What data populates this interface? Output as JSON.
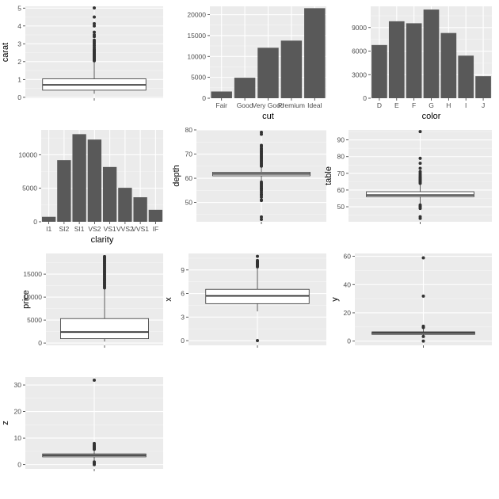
{
  "colors": {
    "panel_bg": "#ebebeb",
    "grid_major": "#ffffff",
    "grid_minor": "#f5f5f5",
    "bar_fill": "#595959",
    "box_fill": "#ffffff",
    "box_line": "#333333",
    "outlier": "#333333",
    "tick_text": "#4d4d4d",
    "axis_title": "#000000"
  },
  "chart_data": [
    {
      "id": "carat",
      "type": "box",
      "ylabel": "carat",
      "xlabel": "",
      "ylim": [
        -0.05,
        5.1
      ],
      "yticks": [
        0,
        1,
        2,
        3,
        4,
        5
      ],
      "ytick_labels": [
        "0",
        "1",
        "2",
        "3",
        "4",
        "5"
      ],
      "box": {
        "lower_whisker": 0.2,
        "q1": 0.4,
        "median": 0.7,
        "q3": 1.04,
        "upper_whisker": 2.0
      },
      "outliers": [
        2.05,
        2.1,
        2.15,
        2.2,
        2.25,
        2.3,
        2.35,
        2.4,
        2.45,
        2.5,
        2.55,
        2.6,
        2.65,
        2.7,
        2.8,
        2.9,
        3.0,
        3.1,
        3.2,
        3.4,
        3.5,
        3.65,
        4.0,
        4.13,
        4.5,
        5.01
      ]
    },
    {
      "id": "cut",
      "type": "bar",
      "xlabel": "cut",
      "ylabel": "",
      "categories": [
        "Fair",
        "Good",
        "Very Good",
        "Premium",
        "Ideal"
      ],
      "values": [
        1610,
        4906,
        12082,
        13791,
        21551
      ],
      "ylim": [
        0,
        22000
      ],
      "yticks": [
        0,
        5000,
        10000,
        15000,
        20000
      ],
      "ytick_labels": [
        "0",
        "5000",
        "10000",
        "15000",
        "20000"
      ]
    },
    {
      "id": "color",
      "type": "bar",
      "xlabel": "color",
      "ylabel": "",
      "categories": [
        "D",
        "E",
        "F",
        "G",
        "H",
        "I",
        "J"
      ],
      "values": [
        6775,
        9797,
        9542,
        11292,
        8304,
        5422,
        2808
      ],
      "ylim": [
        0,
        11700
      ],
      "yticks": [
        0,
        3000,
        6000,
        9000
      ],
      "ytick_labels": [
        "0",
        "3000",
        "6000",
        "9000"
      ]
    },
    {
      "id": "clarity",
      "type": "bar",
      "xlabel": "clarity",
      "ylabel": "",
      "categories": [
        "I1",
        "SI2",
        "SI1",
        "VS2",
        "VS1",
        "VVS2",
        "VVS1",
        "IF"
      ],
      "values": [
        741,
        9194,
        13065,
        12258,
        8171,
        5066,
        3655,
        1790
      ],
      "ylim": [
        0,
        13700
      ],
      "yticks": [
        0,
        5000,
        10000
      ],
      "ytick_labels": [
        "0",
        "5000",
        "10000"
      ]
    },
    {
      "id": "depth",
      "type": "box",
      "ylabel": "depth",
      "xlabel": "",
      "ylim": [
        42,
        80
      ],
      "yticks": [
        50,
        60,
        70,
        80
      ],
      "ytick_labels": [
        "50",
        "60",
        "70",
        "80"
      ],
      "box": {
        "lower_whisker": 58.8,
        "q1": 61.0,
        "median": 61.8,
        "q3": 62.5,
        "upper_whisker": 64.7
      },
      "outliers": [
        43.0,
        44.0,
        50.8,
        51.0,
        52.2,
        53.0,
        53.4,
        54.2,
        55.0,
        55.6,
        56.0,
        56.6,
        57.2,
        57.8,
        58.4,
        65.0,
        65.6,
        66.2,
        66.8,
        67.4,
        68.0,
        68.6,
        69.2,
        69.8,
        70.4,
        71.0,
        71.6,
        72.2,
        73.0,
        73.6,
        78.2,
        79.0
      ]
    },
    {
      "id": "table",
      "type": "box",
      "ylabel": "table",
      "xlabel": "",
      "ylim": [
        41,
        96
      ],
      "yticks": [
        50,
        60,
        70,
        80,
        90
      ],
      "ytick_labels": [
        "50",
        "60",
        "70",
        "80",
        "90"
      ],
      "box": {
        "lower_whisker": 51.6,
        "q1": 56.0,
        "median": 57.0,
        "q3": 59.0,
        "upper_whisker": 63.5
      },
      "outliers": [
        43.0,
        44.0,
        49.0,
        50.0,
        50.1,
        51.0,
        64.0,
        64.5,
        65.0,
        65.5,
        66.0,
        66.5,
        67.0,
        67.5,
        68.0,
        69.0,
        70.0,
        71.0,
        73.0,
        76.0,
        79.0,
        95.0
      ]
    },
    {
      "id": "price",
      "type": "box",
      "ylabel": "price",
      "xlabel": "",
      "ylim": [
        -500,
        19500
      ],
      "yticks": [
        0,
        5000,
        10000,
        15000
      ],
      "ytick_labels": [
        "0",
        "5000",
        "10000",
        "15000"
      ],
      "box": {
        "lower_whisker": 326,
        "q1": 950,
        "median": 2401,
        "q3": 5324,
        "upper_whisker": 11886
      },
      "outliers": [
        12000,
        12300,
        12600,
        12900,
        13200,
        13500,
        13800,
        14100,
        14400,
        14700,
        15000,
        15300,
        15600,
        15900,
        16200,
        16500,
        16800,
        17100,
        17400,
        17700,
        18000,
        18300,
        18600,
        18823
      ]
    },
    {
      "id": "x",
      "type": "box",
      "ylabel": "x",
      "xlabel": "",
      "ylim": [
        -0.6,
        11.1
      ],
      "yticks": [
        0,
        3,
        6,
        9
      ],
      "ytick_labels": [
        "0",
        "3",
        "6",
        "9"
      ],
      "box": {
        "lower_whisker": 3.73,
        "q1": 4.71,
        "median": 5.7,
        "q3": 6.54,
        "upper_whisker": 9.3
      },
      "outliers": [
        0.0,
        9.4,
        9.5,
        9.6,
        9.7,
        9.8,
        9.9,
        10.0,
        10.1,
        10.2,
        10.74
      ]
    },
    {
      "id": "y",
      "type": "box",
      "ylabel": "y",
      "xlabel": "",
      "ylim": [
        -3,
        62
      ],
      "yticks": [
        0,
        20,
        40,
        60
      ],
      "ytick_labels": [
        "0",
        "20",
        "40",
        "60"
      ],
      "box": {
        "lower_whisker": 3.68,
        "q1": 4.72,
        "median": 5.71,
        "q3": 6.54,
        "upper_whisker": 9.26
      },
      "outliers": [
        0.0,
        3.2,
        9.6,
        10.2,
        10.5,
        31.8,
        58.9
      ]
    },
    {
      "id": "z",
      "type": "box",
      "ylabel": "z",
      "xlabel": "",
      "ylim": [
        -1.6,
        33
      ],
      "yticks": [
        0,
        10,
        20,
        30
      ],
      "ytick_labels": [
        "0",
        "10",
        "20",
        "30"
      ],
      "box": {
        "lower_whisker": 1.07,
        "q1": 2.91,
        "median": 3.53,
        "q3": 4.04,
        "upper_whisker": 5.74
      },
      "outliers": [
        0.0,
        0.5,
        1.0,
        5.8,
        6.0,
        6.3,
        6.6,
        7.0,
        7.4,
        8.0,
        31.8
      ]
    }
  ]
}
